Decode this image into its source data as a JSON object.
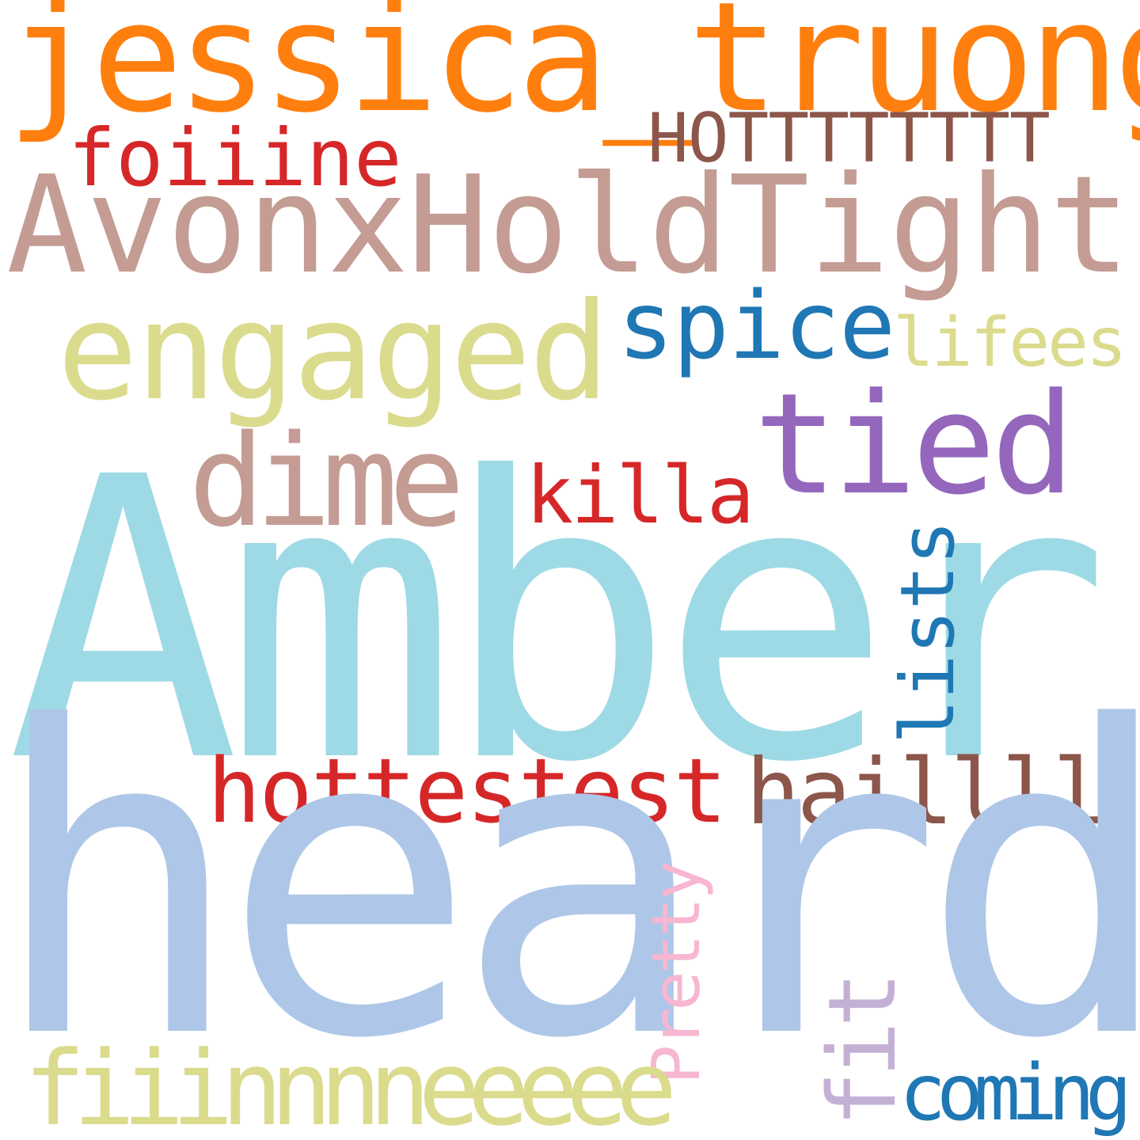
{
  "words": {
    "jessica_truong": {
      "text": "jessica_truong",
      "color": "#ff7f0e"
    },
    "hotttttttt": {
      "text": "HOTTTTTTTT",
      "color": "#8c564b"
    },
    "foiiine": {
      "text": "foiiine",
      "color": "#d62728"
    },
    "avonxholdtight": {
      "text": "AvonxHoldTight",
      "color": "#c49c94"
    },
    "engaged": {
      "text": "engaged",
      "color": "#dbdb8d"
    },
    "spice": {
      "text": "spice",
      "color": "#1f77b4"
    },
    "lifees": {
      "text": "lifees",
      "color": "#dbdb8d"
    },
    "tied": {
      "text": "tied",
      "color": "#9467bd"
    },
    "dime": {
      "text": "dime",
      "color": "#c49c94"
    },
    "killa": {
      "text": "killa",
      "color": "#d62728"
    },
    "amber": {
      "text": "Amber",
      "color": "#9edae5"
    },
    "lists": {
      "text": "lists",
      "color": "#1f77b4"
    },
    "hottestest": {
      "text": "hottestest",
      "color": "#d62728"
    },
    "haillll": {
      "text": "haillll",
      "color": "#8c564b"
    },
    "heard": {
      "text": "heard",
      "color": "#aec7e8"
    },
    "pretty": {
      "text": "Pretty",
      "color": "#f7b6d2"
    },
    "fit": {
      "text": "fit",
      "color": "#c5b0d5"
    },
    "fiiinnnneeeee": {
      "text": "fiiinnnneeeee",
      "color": "#dbdb8d"
    },
    "coming": {
      "text": "coming",
      "color": "#1f77b4"
    }
  }
}
